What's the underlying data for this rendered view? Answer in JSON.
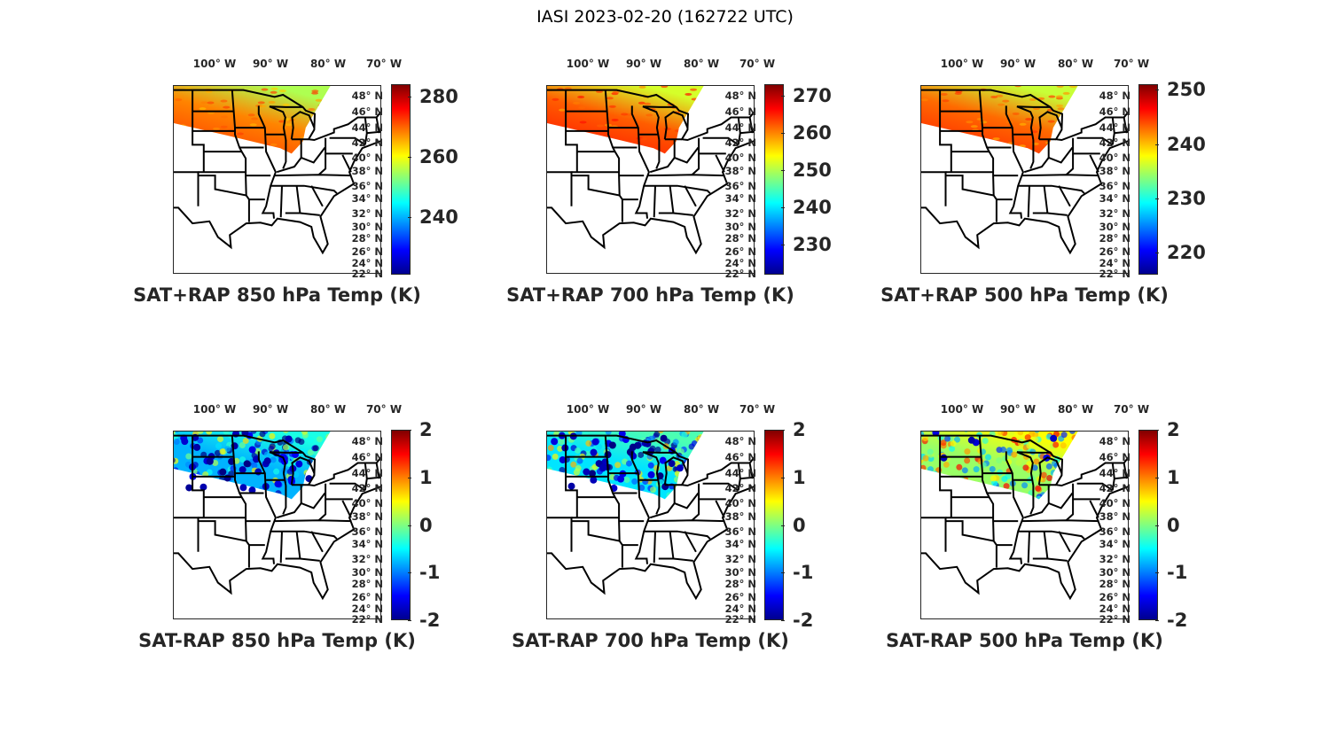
{
  "title": "IASI 2023-02-20 (162722 UTC)",
  "lat_labels": [
    "48° N",
    "46° N",
    "44° N",
    "42° N",
    "40° N",
    "38° N",
    "36° N",
    "34° N",
    "32° N",
    "30° N",
    "28° N",
    "26° N",
    "24° N",
    "22° N"
  ],
  "lon_labels": [
    "100° W",
    "90° W",
    "80° W",
    "70° W"
  ],
  "panels": [
    {
      "title": "SAT+RAP 850 hPa Temp (K)",
      "cmin": 221,
      "cmax": 284,
      "ticks": [
        "240",
        "260",
        "280"
      ],
      "kind": "temp",
      "swath_value": 268
    },
    {
      "title": "SAT+RAP 700 hPa Temp (K)",
      "cmin": 222,
      "cmax": 273,
      "ticks": [
        "230",
        "240",
        "250",
        "260",
        "270"
      ],
      "kind": "temp",
      "swath_value": 262
    },
    {
      "title": "SAT+RAP 500 hPa Temp (K)",
      "cmin": 216,
      "cmax": 251,
      "ticks": [
        "220",
        "230",
        "240",
        "250"
      ],
      "kind": "temp",
      "swath_value": 243
    },
    {
      "title": "SAT-RAP 850 hPa Temp (K)",
      "cmin": -2,
      "cmax": 2,
      "ticks": [
        "-2",
        "-1",
        "0",
        "1",
        "2"
      ],
      "kind": "diff",
      "swath_value": -0.8
    },
    {
      "title": "SAT-RAP 700 hPa Temp (K)",
      "cmin": -2,
      "cmax": 2,
      "ticks": [
        "-2",
        "-1",
        "0",
        "1",
        "2"
      ],
      "kind": "diff",
      "swath_value": -0.6
    },
    {
      "title": "SAT-RAP 500 hPa Temp (K)",
      "cmin": -2,
      "cmax": 2,
      "ticks": [
        "-2",
        "-1",
        "0",
        "1",
        "2"
      ],
      "kind": "diff",
      "swath_value": 0.1
    }
  ]
}
